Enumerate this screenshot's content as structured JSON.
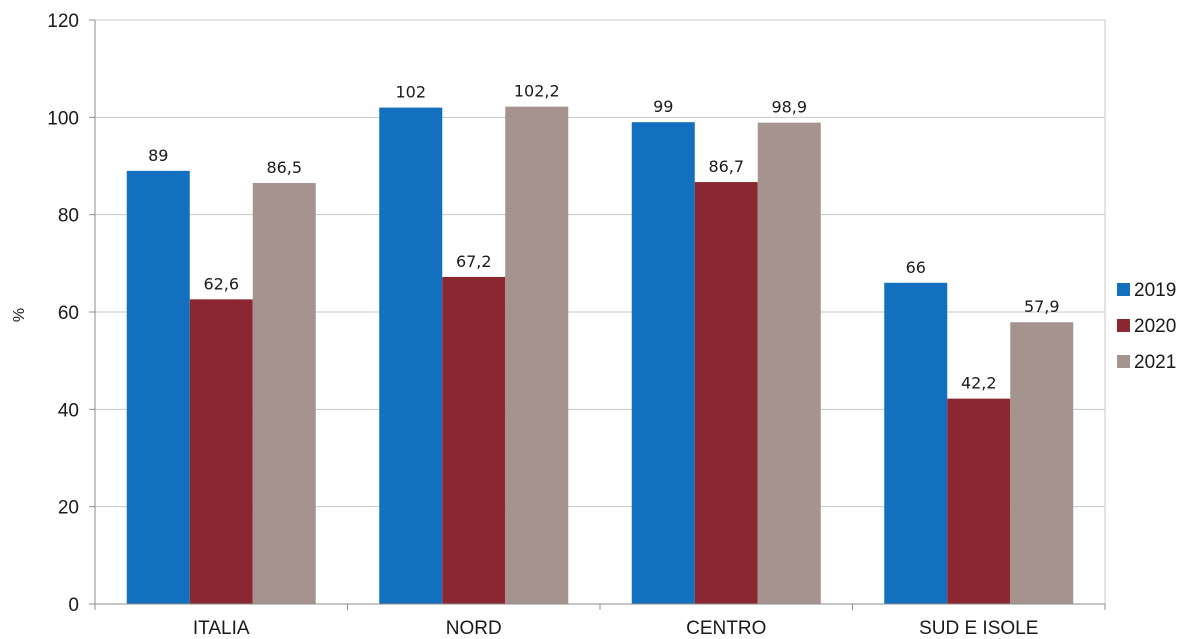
{
  "chart_data": {
    "type": "bar",
    "title": "",
    "xlabel": "",
    "ylabel": "%",
    "ylim": [
      0,
      120
    ],
    "yticks": [
      0,
      20,
      40,
      60,
      80,
      100,
      120
    ],
    "categories": [
      "ITALIA",
      "NORD",
      "CENTRO",
      "SUD E ISOLE"
    ],
    "series": [
      {
        "name": "2019",
        "color": "#1270BE",
        "values": [
          89,
          102,
          99,
          66
        ],
        "labels": [
          "89",
          "102",
          "99",
          "66"
        ]
      },
      {
        "name": "2020",
        "color": "#8B2730",
        "values": [
          62.6,
          67.2,
          86.7,
          42.2
        ],
        "labels": [
          "62,6",
          "67,2",
          "86,7",
          "42,2"
        ]
      },
      {
        "name": "2021",
        "color": "#A4938E",
        "values": [
          86.5,
          102.2,
          98.9,
          57.9
        ],
        "labels": [
          "86,5",
          "102,2",
          "98,9",
          "57,9"
        ]
      }
    ],
    "grid": true,
    "legend_position": "right"
  }
}
